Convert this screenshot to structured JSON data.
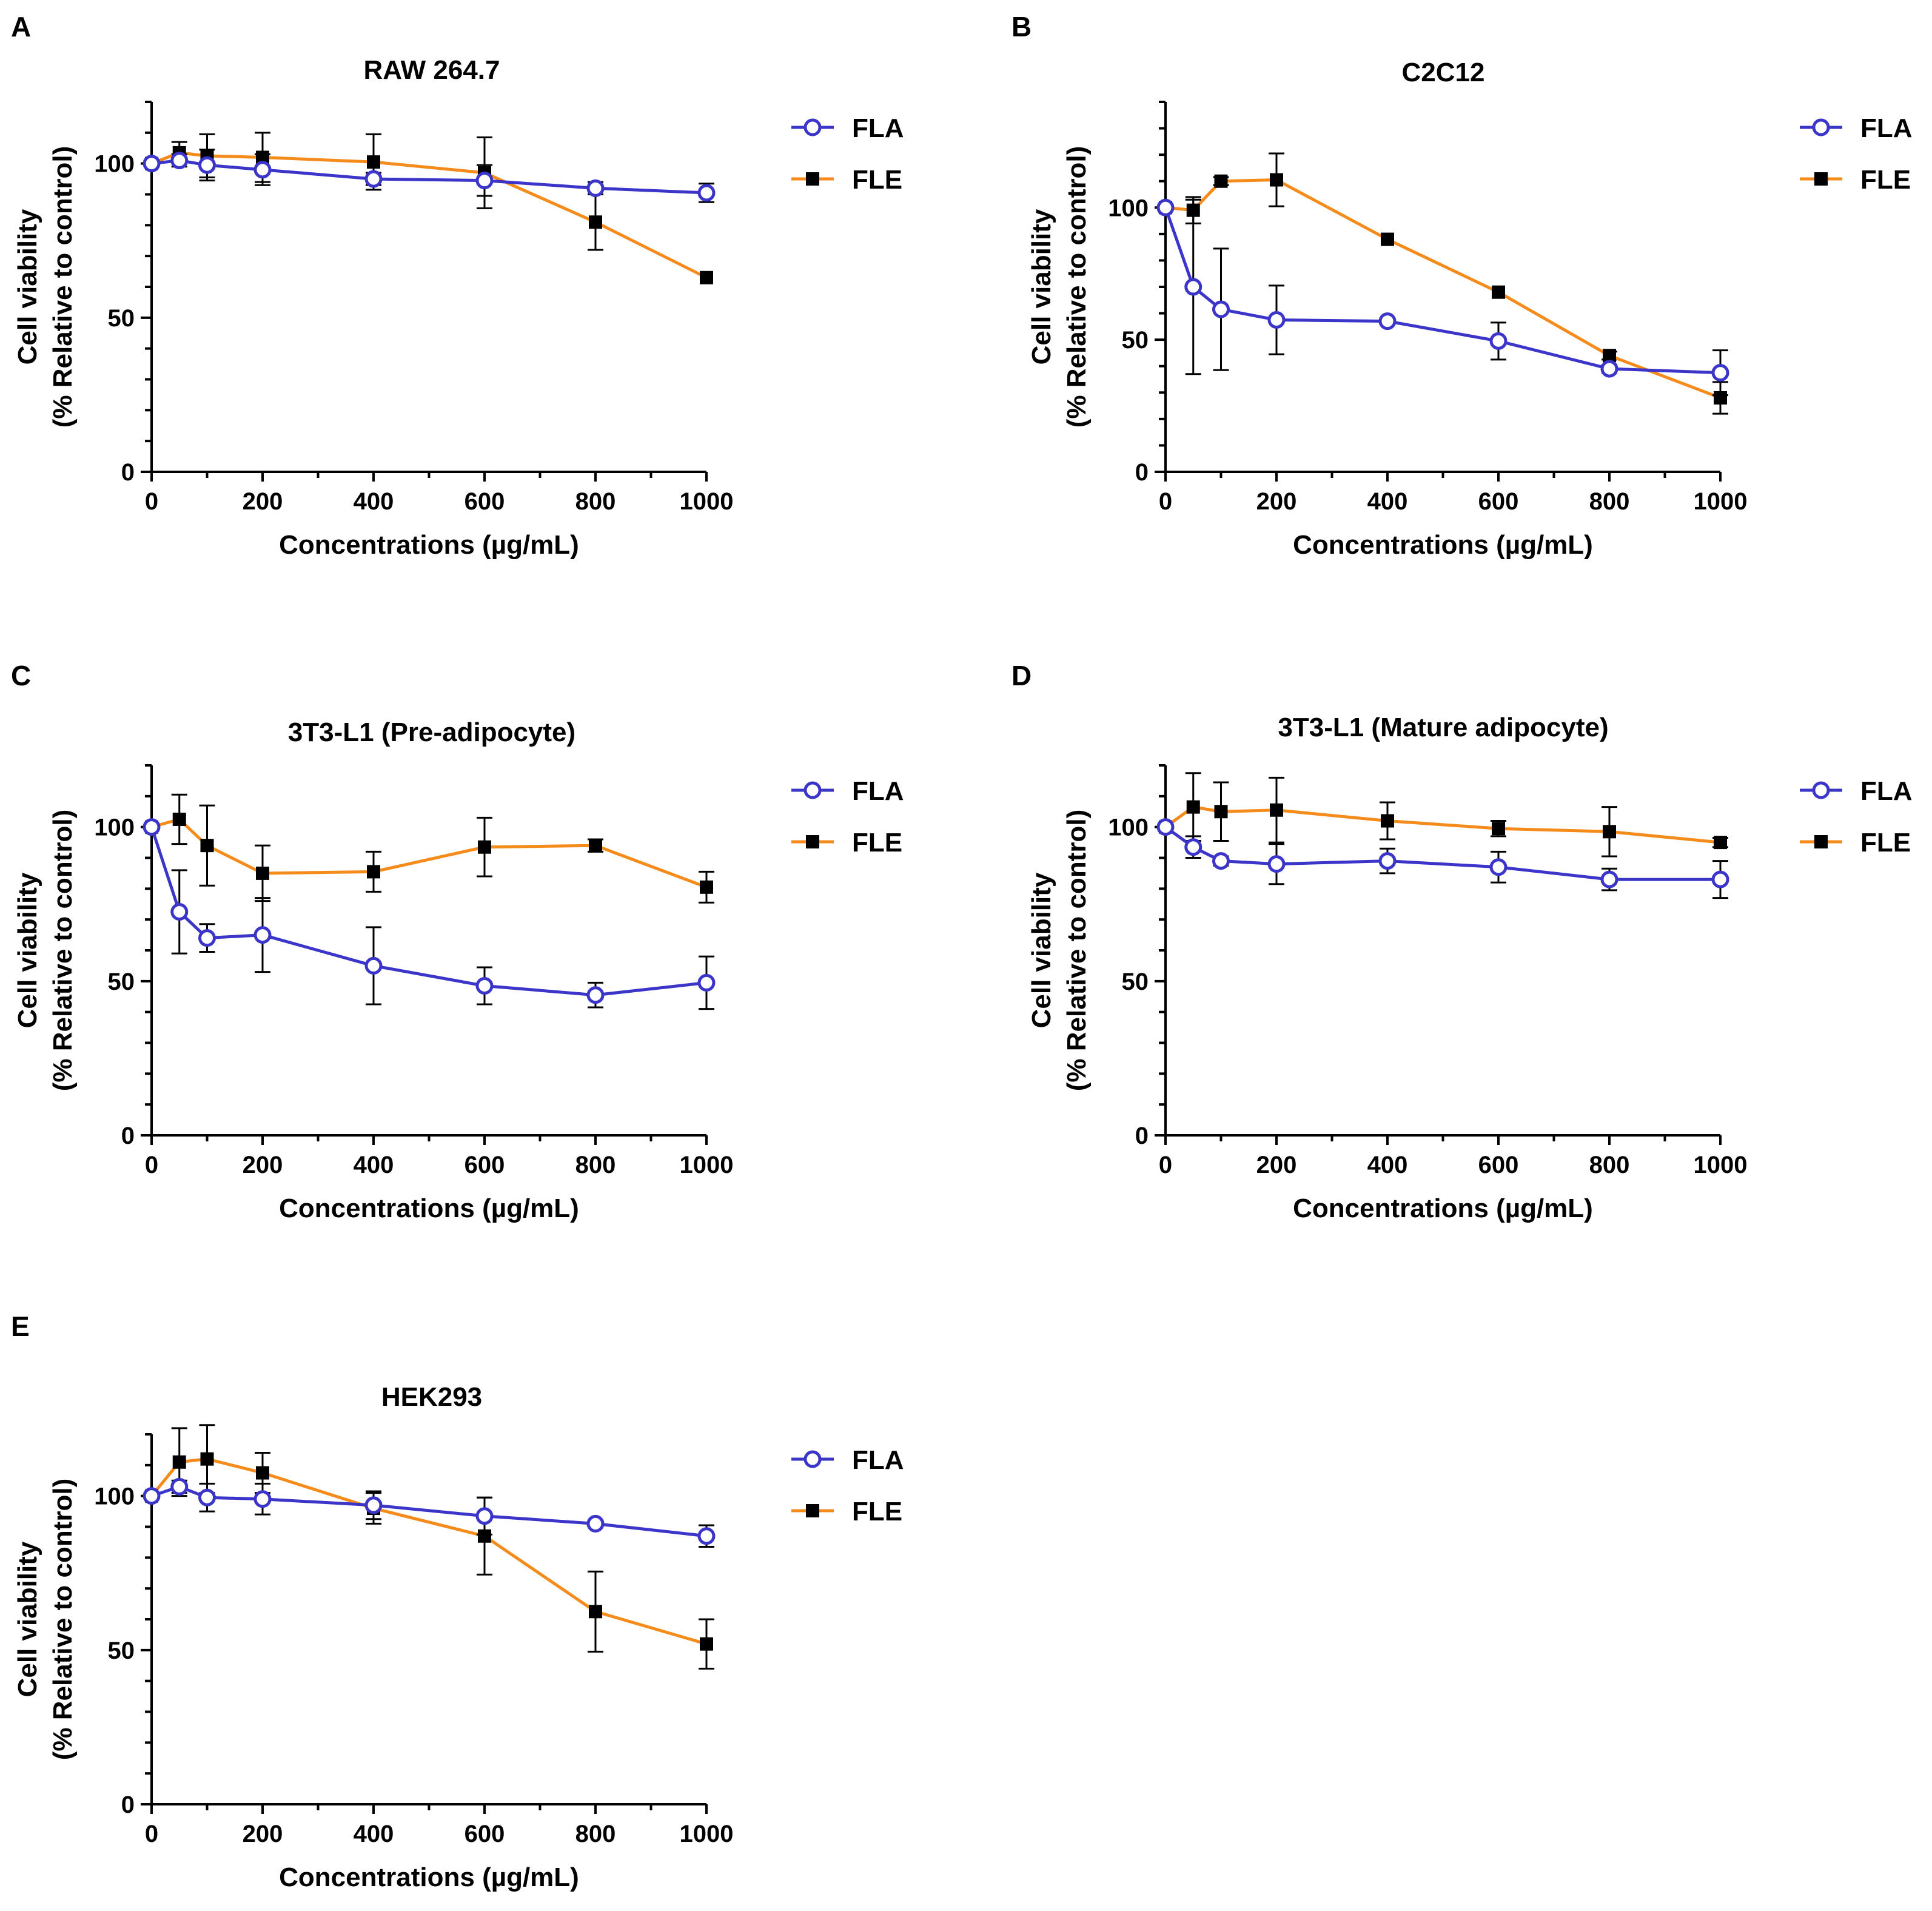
{
  "colors": {
    "FLA": "#3b35c9",
    "FLE": "#f58b1b",
    "axis": "#000000"
  },
  "chart_data": [
    {
      "panel": "A",
      "type": "line",
      "title": "RAW 264.7",
      "xlabel": "Concentrations (µg/mL)",
      "ylabel": [
        "Cell viability",
        "(% Relative to control)"
      ],
      "xlim": [
        0,
        1000
      ],
      "ylim": [
        0,
        120
      ],
      "xticks": [
        0,
        200,
        400,
        600,
        800,
        1000
      ],
      "yticks": [
        0,
        50,
        100
      ],
      "x": [
        0,
        50,
        100,
        200,
        400,
        600,
        800,
        1000
      ],
      "legend": "top-right",
      "series": [
        {
          "name": "FLA",
          "marker": "open-circle",
          "values": [
            100,
            101,
            99.5,
            98,
            95,
            94.5,
            92,
            90.5
          ],
          "errors": [
            1,
            2,
            5,
            5,
            2,
            5,
            2,
            3
          ]
        },
        {
          "name": "FLE",
          "marker": "filled-square",
          "values": [
            100,
            103.5,
            102.5,
            102,
            100.5,
            97,
            81,
            63
          ],
          "errors": [
            1,
            3.5,
            7,
            8,
            9,
            11.5,
            9,
            1
          ]
        }
      ]
    },
    {
      "panel": "B",
      "type": "line",
      "title": "C2C12",
      "xlabel": "Concentrations (µg/mL)",
      "ylabel": [
        "Cell viability",
        "(% Relative to control)"
      ],
      "xlim": [
        0,
        1000
      ],
      "ylim": [
        0,
        140
      ],
      "xticks": [
        0,
        200,
        400,
        600,
        800,
        1000
      ],
      "yticks": [
        0,
        50,
        100
      ],
      "x": [
        0,
        50,
        100,
        200,
        400,
        600,
        800,
        1000
      ],
      "legend": "top-right",
      "series": [
        {
          "name": "FLA",
          "marker": "open-circle",
          "values": [
            100,
            70,
            61.5,
            57.5,
            57,
            49.5,
            39,
            37.5
          ],
          "errors": [
            1,
            33,
            23,
            13,
            1,
            7,
            1.5,
            8.5
          ]
        },
        {
          "name": "FLE",
          "marker": "filled-square",
          "values": [
            100,
            99,
            110,
            110.5,
            88,
            68,
            44,
            28
          ],
          "errors": [
            1,
            5,
            1.5,
            10,
            1,
            1,
            1.5,
            6
          ]
        }
      ]
    },
    {
      "panel": "C",
      "type": "line",
      "title": "3T3-L1 (Pre-adipocyte)",
      "xlabel": "Concentrations (µg/mL)",
      "ylabel": [
        "Cell viability",
        "(% Relative to control)"
      ],
      "xlim": [
        0,
        1000
      ],
      "ylim": [
        0,
        120
      ],
      "xticks": [
        0,
        200,
        400,
        600,
        800,
        1000
      ],
      "yticks": [
        0,
        50,
        100
      ],
      "x": [
        0,
        50,
        100,
        200,
        400,
        600,
        800,
        1000
      ],
      "legend": "top-right",
      "series": [
        {
          "name": "FLA",
          "marker": "open-circle",
          "values": [
            100,
            72.5,
            64,
            65,
            55,
            48.5,
            45.5,
            49.5
          ],
          "errors": [
            1,
            13.5,
            4.5,
            12,
            12.5,
            6,
            4,
            8.5
          ]
        },
        {
          "name": "FLE",
          "marker": "filled-square",
          "values": [
            100,
            102.5,
            94,
            85,
            85.5,
            93.5,
            94,
            80.5
          ],
          "errors": [
            1,
            8,
            13,
            9,
            6.5,
            9.5,
            2,
            5
          ]
        }
      ]
    },
    {
      "panel": "D",
      "type": "line",
      "title": "3T3-L1 (Mature adipocyte)",
      "xlabel": "Concentrations (µg/mL)",
      "ylabel": [
        "Cell viability",
        "(% Relative to control)"
      ],
      "xlim": [
        0,
        1000
      ],
      "ylim": [
        0,
        120
      ],
      "xticks": [
        0,
        200,
        400,
        600,
        800,
        1000
      ],
      "yticks": [
        0,
        50,
        100
      ],
      "x": [
        0,
        50,
        100,
        200,
        400,
        600,
        800,
        1000
      ],
      "legend": "top-right",
      "series": [
        {
          "name": "FLA",
          "marker": "open-circle",
          "values": [
            100,
            93.5,
            89,
            88,
            89,
            87,
            83,
            83
          ],
          "errors": [
            1,
            3.5,
            1.5,
            6.5,
            4,
            5,
            3.5,
            6
          ]
        },
        {
          "name": "FLE",
          "marker": "filled-square",
          "values": [
            100,
            106.5,
            105,
            105.5,
            102,
            99.5,
            98.5,
            95
          ],
          "errors": [
            1,
            11,
            9.5,
            10.5,
            6,
            2.5,
            8,
            1.5
          ]
        }
      ]
    },
    {
      "panel": "E",
      "type": "line",
      "title": "HEK293",
      "xlabel": "Concentrations (µg/mL)",
      "ylabel": [
        "Cell viability",
        "(% Relative to control)"
      ],
      "xlim": [
        0,
        1000
      ],
      "ylim": [
        0,
        120
      ],
      "xticks": [
        0,
        200,
        400,
        600,
        800,
        1000
      ],
      "yticks": [
        0,
        50,
        100
      ],
      "x": [
        0,
        50,
        100,
        200,
        400,
        600,
        800,
        1000
      ],
      "legend": "top-right",
      "series": [
        {
          "name": "FLA",
          "marker": "open-circle",
          "values": [
            100,
            103,
            99.5,
            99,
            97,
            93.5,
            91,
            87
          ],
          "errors": [
            1,
            2,
            4.5,
            5,
            4.5,
            6,
            1,
            3.5
          ]
        },
        {
          "name": "FLE",
          "marker": "filled-square",
          "values": [
            100,
            111,
            112,
            107.5,
            96,
            87,
            62.5,
            52
          ],
          "errors": [
            1,
            11,
            11,
            6.5,
            5,
            12.5,
            13,
            8
          ]
        }
      ]
    }
  ]
}
